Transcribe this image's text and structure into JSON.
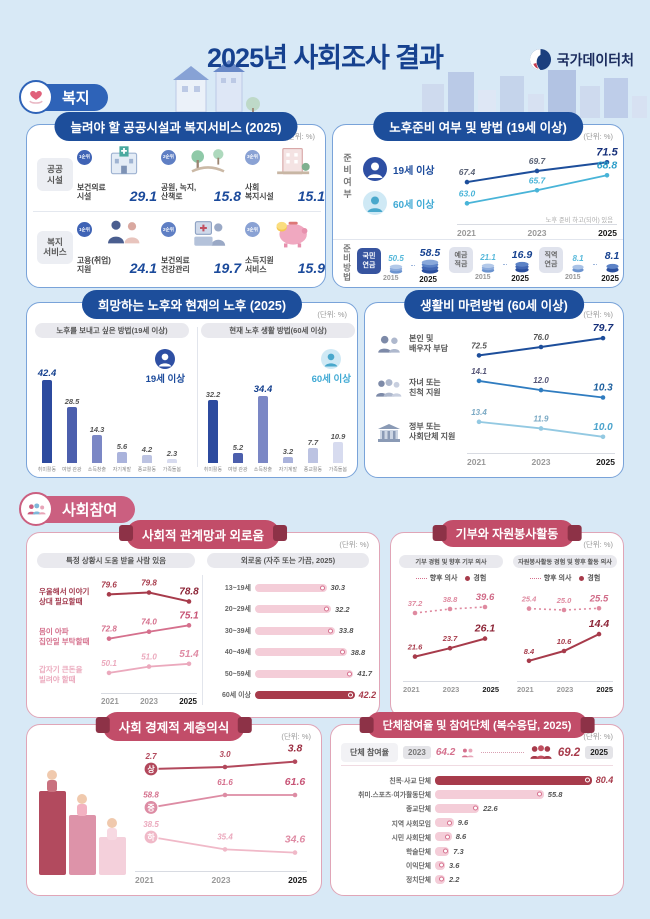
{
  "page": {
    "title": "2025년 사회조사 결과",
    "logo": "국가데이터처",
    "unit": "(단위: %)"
  },
  "sections": {
    "welfare": "복지",
    "participation": "사회참여"
  },
  "panels": {
    "facilities_title": "늘려야 할 공공시설과 복지서비스 (2025)",
    "retirement_title": "노후준비 여부 및 방법 (19세 이상)",
    "oldage_title": "희망하는 노후와 현재의 노후 (2025)",
    "living_title": "생활비 마련방법 (60세 이상)",
    "network_title": "사회적 관계망과 외로움",
    "giving_title": "기부와 자원봉사활동",
    "class_title": "사회 경제적 계층의식",
    "groups_title": "단체참여율 및 참여단체 (복수응답, 2025)"
  },
  "chart_data": [
    {
      "name": "retirement_prep",
      "type": "line",
      "side_label": "준비여부",
      "note": "노후 준비 하고(되어) 있음",
      "x": [
        "2021",
        "2023",
        "2025"
      ],
      "series": [
        {
          "name": "19세 이상",
          "values": [
            67.4,
            69.7,
            71.5
          ]
        },
        {
          "name": "60세 이상",
          "values": [
            63.0,
            65.7,
            68.8
          ]
        }
      ]
    },
    {
      "name": "retirement_method",
      "type": "bar",
      "side_label": "준비방법",
      "x": [
        "2015",
        "2025"
      ],
      "groups": [
        {
          "label": "국민\n연금",
          "values": [
            50.5,
            58.5
          ]
        },
        {
          "label": "예금\n적금",
          "values": [
            21.1,
            16.9
          ]
        },
        {
          "label": "직역\n연금",
          "values": [
            8.1,
            8.1
          ]
        }
      ]
    },
    {
      "name": "desired_oldage",
      "type": "bar",
      "header": "노후를 보내고 싶은 방법(19세 이상)",
      "who": "19세 이상",
      "categories": [
        "취미활동",
        "여행 관광",
        "소득창출",
        "자기계발",
        "종교활동",
        "가족돌봄"
      ],
      "values": [
        42.4,
        28.5,
        14.3,
        5.6,
        4.2,
        2.3
      ]
    },
    {
      "name": "current_oldage",
      "type": "bar",
      "header": "현재 노후 생활 방법(60세 이상)",
      "who": "60세 이상",
      "categories": [
        "취미활동",
        "여행 관광",
        "소득창출",
        "자기계발",
        "종교활동",
        "가족돌봄"
      ],
      "values": [
        32.2,
        5.2,
        34.4,
        3.2,
        7.7,
        10.9
      ]
    },
    {
      "name": "living_expense",
      "type": "line",
      "x": [
        "2021",
        "2023",
        "2025"
      ],
      "series": [
        {
          "name": "본인 및\n배우자 부담",
          "values": [
            72.5,
            76.0,
            79.7
          ]
        },
        {
          "name": "자녀 또는\n친척 지원",
          "values": [
            14.1,
            12.0,
            10.3
          ]
        },
        {
          "name": "정부 또는\n사회단체 지원",
          "values": [
            13.4,
            11.9,
            10.0
          ]
        }
      ]
    },
    {
      "name": "help_network",
      "type": "line",
      "header": "특정 상황시 도움 받을 사람 있음",
      "x": [
        "2021",
        "2023",
        "2025"
      ],
      "series": [
        {
          "name": "우울해서 이야기\n상대 필요할때",
          "values": [
            79.6,
            79.8,
            78.8
          ]
        },
        {
          "name": "몸이 아파\n집안일 부탁할때",
          "values": [
            72.8,
            74.0,
            75.1
          ]
        },
        {
          "name": "갑자기 큰돈을\n빌려야 할때",
          "values": [
            50.1,
            51.0,
            51.4
          ]
        }
      ]
    },
    {
      "name": "loneliness",
      "type": "bar",
      "header": "외로움 (자주 또는 가끔, 2025)",
      "categories": [
        "13~19세",
        "20~29세",
        "30~39세",
        "40~49세",
        "50~59세",
        "60세 이상"
      ],
      "values": [
        30.3,
        32.2,
        33.8,
        38.8,
        41.7,
        42.2
      ]
    },
    {
      "name": "donation",
      "type": "line",
      "header": "기부 경험 및 향후 기부 의사",
      "legend": [
        "향후 의사",
        "경험"
      ],
      "x": [
        "2021",
        "2023",
        "2025"
      ],
      "series": [
        {
          "name": "향후 의사",
          "values": [
            37.2,
            38.8,
            39.6
          ]
        },
        {
          "name": "경험",
          "values": [
            21.6,
            23.7,
            26.1
          ]
        }
      ]
    },
    {
      "name": "volunteer",
      "type": "line",
      "header": "자원봉사활동 경험 및 향후 활동 의사",
      "legend": [
        "향후 의사",
        "경험"
      ],
      "x": [
        "2021",
        "2023",
        "2025"
      ],
      "series": [
        {
          "name": "향후 의사",
          "values": [
            25.4,
            25.0,
            25.5
          ]
        },
        {
          "name": "경험",
          "values": [
            8.4,
            10.6,
            14.4
          ]
        }
      ]
    },
    {
      "name": "class_consciousness",
      "type": "line",
      "x": [
        "2021",
        "2023",
        "2025"
      ],
      "series": [
        {
          "name": "상",
          "values": [
            2.7,
            3.0,
            3.8
          ]
        },
        {
          "name": "중",
          "values": [
            58.8,
            61.6,
            61.6
          ]
        },
        {
          "name": "하",
          "values": [
            38.5,
            35.4,
            34.6
          ]
        }
      ]
    },
    {
      "name": "group_participation",
      "type": "bar",
      "rate_label": "단체 참여율",
      "rate": {
        "labels": [
          "2023",
          "2025"
        ],
        "values": [
          64.2,
          69.2
        ]
      },
      "categories": [
        "친목·사교 단체",
        "취미.스포츠·여가활동단체",
        "종교단체",
        "지역 사회모임",
        "시민 사회단체",
        "학술단체",
        "이익단체",
        "정치단체"
      ],
      "values": [
        80.4,
        55.8,
        22.6,
        9.6,
        8.6,
        7.3,
        3.6,
        2.2
      ]
    },
    {
      "name": "facilities",
      "type": "table",
      "rows": [
        {
          "group": "공공\n시설",
          "items": [
            {
              "rank": "1순위",
              "label": "보건의료\n시설",
              "value": 29.1,
              "icon": "hospital-icon"
            },
            {
              "rank": "2순위",
              "label": "공원, 녹지,\n산책로",
              "value": 15.8,
              "icon": "park-icon"
            },
            {
              "rank": "3순위",
              "label": "사회\n복지시설",
              "value": 15.1,
              "icon": "welfare-building-icon"
            }
          ]
        },
        {
          "group": "복지\n서비스",
          "items": [
            {
              "rank": "1순위",
              "label": "고용(취업)\n지원",
              "value": 24.1,
              "icon": "employment-icon"
            },
            {
              "rank": "2순위",
              "label": "보건의료\n건강관리",
              "value": 19.7,
              "icon": "healthcare-icon"
            },
            {
              "rank": "3순위",
              "label": "소득지원\n서비스",
              "value": 15.9,
              "icon": "piggy-bank-icon"
            }
          ]
        }
      ]
    }
  ]
}
